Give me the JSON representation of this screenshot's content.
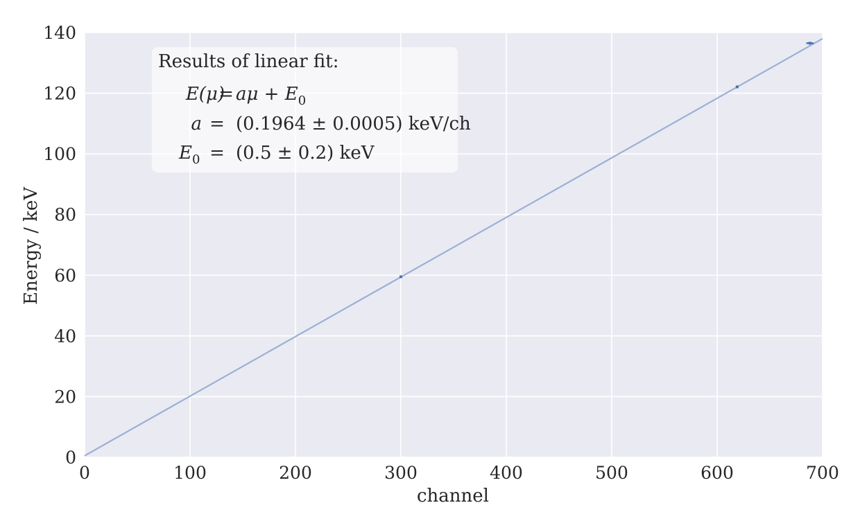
{
  "chart_data": {
    "type": "scatter",
    "title": "",
    "xlabel": "channel",
    "ylabel": "Energy / keV",
    "xlim": [
      0,
      700
    ],
    "ylim": [
      0,
      140
    ],
    "xticks": [
      0,
      100,
      200,
      300,
      400,
      500,
      600,
      700
    ],
    "yticks": [
      0,
      20,
      40,
      60,
      80,
      100,
      120,
      140
    ],
    "grid": true,
    "background": "#EAEAF2",
    "series": [
      {
        "kind": "errorbar",
        "color": "#4C72B0",
        "points": [
          {
            "x": 300,
            "y": 59.5,
            "xerr": 1
          },
          {
            "x": 619,
            "y": 122.1,
            "xerr": 1
          },
          {
            "x": 688,
            "y": 136.5,
            "xerr": 3.5
          }
        ]
      },
      {
        "kind": "line",
        "color": "#9BB0D5",
        "slope": 0.1964,
        "intercept": 0.5,
        "x_range": [
          0,
          700
        ]
      }
    ],
    "annotation": {
      "placement": "top-left",
      "line1": "Results of linear fit:",
      "line2_lhs": "E(μ)",
      "line2_eq": "=",
      "line2_rhs": "aμ + E",
      "line2_sub": "0",
      "line3_lhs": "a",
      "line3_eq": "=",
      "line3_rhs": "(0.1964 ± 0.0005) keV/ch",
      "line4_lhs": "E",
      "line4_sub": "0",
      "line4_eq": "=",
      "line4_rhs": "(0.5 ± 0.2) keV"
    }
  }
}
